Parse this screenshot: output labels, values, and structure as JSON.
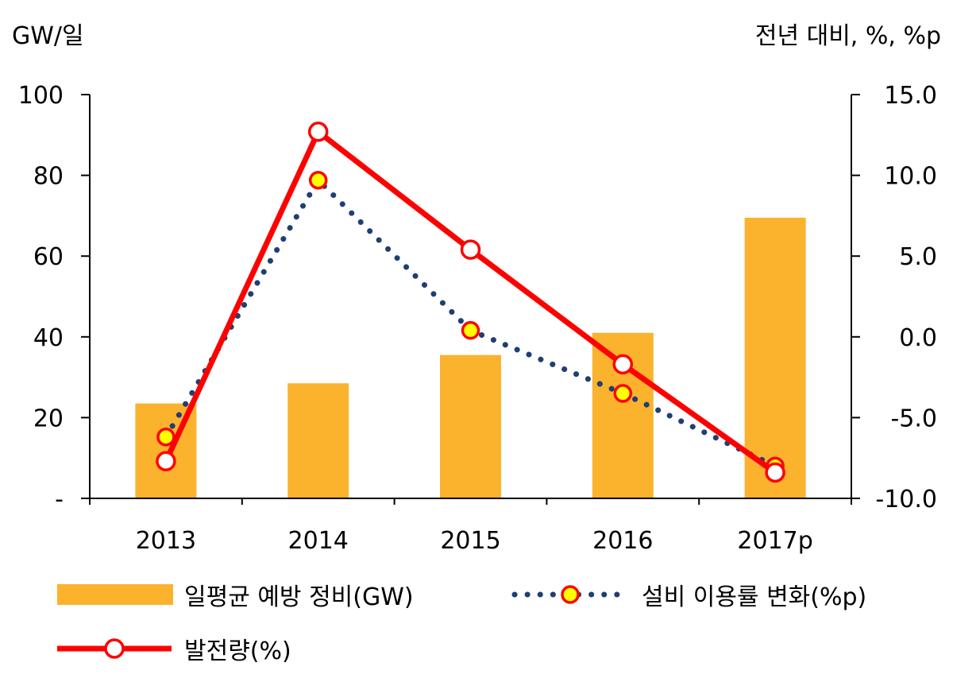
{
  "chart_data": {
    "type": "bar",
    "categories": [
      "2013",
      "2014",
      "2015",
      "2016",
      "2017p"
    ],
    "y_left": {
      "unit_label": "GW/일",
      "ylim": [
        0,
        100
      ],
      "ticks": [
        "-",
        "20",
        "40",
        "60",
        "80",
        "100"
      ],
      "tick_values": [
        0,
        20,
        40,
        60,
        80,
        100
      ]
    },
    "y_right": {
      "unit_label": "전년 대비, %, %p",
      "ylim": [
        -10,
        15
      ],
      "ticks": [
        "-10.0",
        "-5.0",
        "0.0",
        "5.0",
        "10.0",
        "15.0"
      ],
      "tick_values": [
        -10,
        -5,
        0,
        5,
        10,
        15
      ]
    },
    "series": [
      {
        "name": "일평균 예방 정비(GW)",
        "type": "bar",
        "axis": "left",
        "values": [
          23.5,
          28.5,
          35.5,
          41,
          69.5
        ],
        "color": "#FBB22D"
      },
      {
        "name": "설비 이용률 변화(%p)",
        "type": "line",
        "style": "dotted",
        "axis": "right",
        "values": [
          -6.2,
          9.7,
          0.4,
          -3.5,
          -8.0
        ],
        "line_color": "#1F3F73",
        "marker_fill": "#FFFF00",
        "marker_edge": "#FF0000"
      },
      {
        "name": "발전량(%)",
        "type": "line",
        "style": "solid",
        "axis": "right",
        "values": [
          -7.7,
          12.7,
          5.4,
          -1.7,
          -8.4
        ],
        "line_color": "#FF0000",
        "marker_fill": "#FFFFFF",
        "marker_edge": "#FF0000"
      }
    ],
    "legend_position": "bottom"
  }
}
